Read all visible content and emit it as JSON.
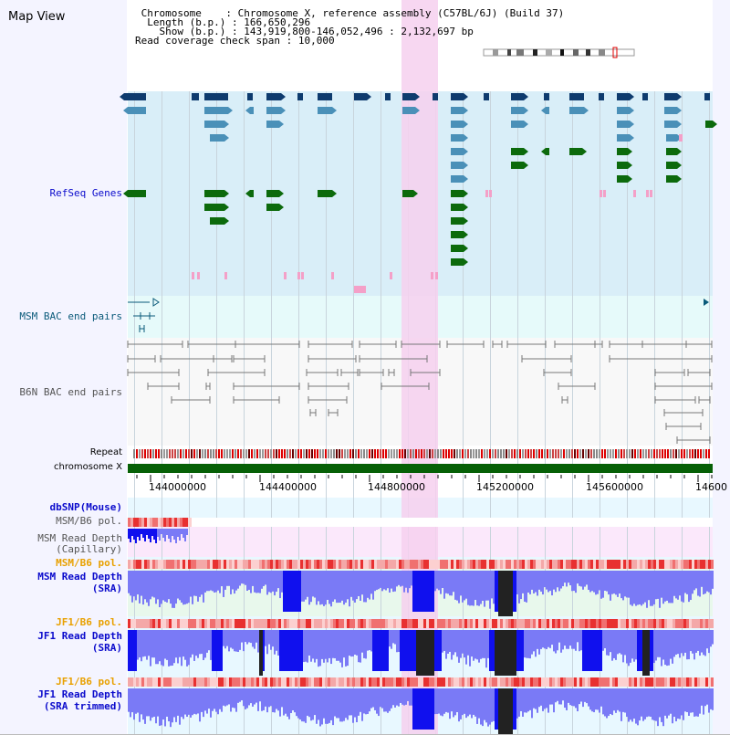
{
  "title": "Map View",
  "info": {
    "chromosome_label": "Chromosome",
    "chromosome_value": "Chromosome X, reference assembly (C57BL/6J) (Build 37)",
    "length_label": "Length (b.p.)",
    "length_value": "166,650,296",
    "show_label": "Show (b.p.)",
    "show_value": "143,919,800-146,052,496 : 2,132,697 bp",
    "coverage_label": "Read coverage check span",
    "coverage_value": "10,000"
  },
  "tracks": {
    "refseq": "RefSeq Genes",
    "msm_bac": "MSM BAC end pairs",
    "b6n_bac": "B6N BAC end pairs",
    "repeat": "Repeat",
    "chromosome": "chromosome X",
    "dbsnp": "dbSNP(Mouse)",
    "msm_b6_pol_1": "MSM/B6 pol.",
    "msm_depth_cap_1": "MSM Read Depth",
    "msm_depth_cap_2": "(Capillary)",
    "msm_b6_pol_2": "MSM/B6 pol.",
    "msm_depth_sra_1": "MSM Read Depth",
    "msm_depth_sra_2": "(SRA)",
    "jf1_b6_pol_1": "JF1/B6 pol.",
    "jf1_depth_sra_1": "JF1 Read Depth",
    "jf1_depth_sra_2": "(SRA)",
    "jf1_b6_pol_2": "JF1/B6 pol.",
    "jf1_depth_trim_1": "JF1 Read Depth",
    "jf1_depth_trim_2": "(SRA trimmed)"
  },
  "axis": {
    "ticks": [
      "144000000",
      "144400000",
      "144800000",
      "145200000",
      "145600000",
      "14600"
    ]
  },
  "colors": {
    "refseq_bg": "#d9eef8",
    "msm_bac_bg": "#e6fafa",
    "gene_navy": "#0e3b6e",
    "gene_steel": "#4a90b8",
    "gene_green": "#0c6a0c",
    "gene_pink": "#f4a0c8",
    "highlight": "#f6d0ee",
    "chrom_green": "#066006",
    "label_blue": "#0a0acc",
    "label_teal": "#0a5a7a",
    "label_orange": "#e8a000",
    "depth_light": "#7a7af6",
    "depth_strong": "#1010ee"
  }
}
